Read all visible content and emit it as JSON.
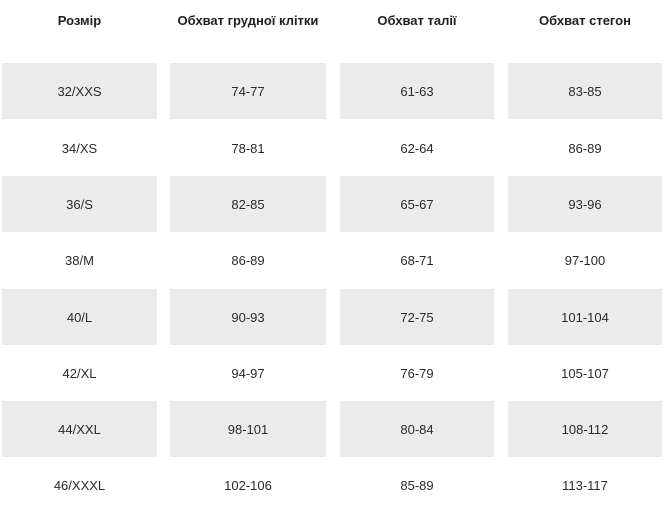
{
  "headers": [
    "Розмір",
    "Обхват грудної клітки",
    "Обхват талії",
    "Обхват стегон"
  ],
  "rows": [
    [
      "32/XXS",
      "74-77",
      "61-63",
      "83-85"
    ],
    [
      "34/XS",
      "78-81",
      "62-64",
      "86-89"
    ],
    [
      "36/S",
      "82-85",
      "65-67",
      "93-96"
    ],
    [
      "38/M",
      "86-89",
      "68-71",
      "97-100"
    ],
    [
      "40/L",
      "90-93",
      "72-75",
      "101-104"
    ],
    [
      "42/XL",
      "94-97",
      "76-79",
      "105-107"
    ],
    [
      "44/XXL",
      "98-101",
      "80-84",
      "108-112"
    ],
    [
      "46/XXXL",
      "102-106",
      "85-89",
      "113-117"
    ]
  ],
  "colors": {
    "shaded_row": "#ebebeb",
    "text": "#1f1f1f"
  }
}
